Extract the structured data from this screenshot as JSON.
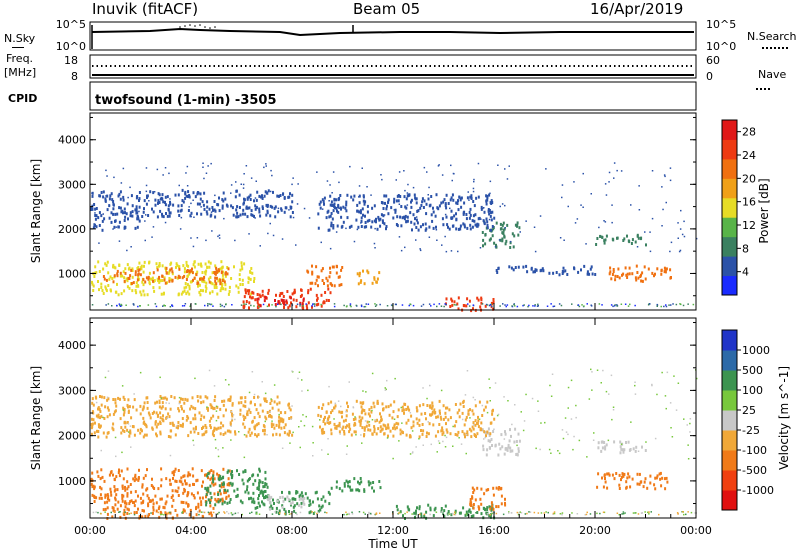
{
  "header": {
    "station": "Inuvik (fitACF)",
    "beam": "Beam 05",
    "date": "16/Apr/2019"
  },
  "left_labels": {
    "nsky": "N.Sky",
    "freq": "Freq.",
    "freq_unit": "[MHz]",
    "cpid": "CPID"
  },
  "right_labels": {
    "nsearch": "N.Search",
    "nave": "Nave"
  },
  "strip_ticks": {
    "noise_left": [
      "10^5",
      "10^0"
    ],
    "noise_right": [
      "10^5",
      "10^0"
    ],
    "freq_left": [
      "18",
      "8"
    ],
    "freq_right": [
      "60",
      "0"
    ]
  },
  "cpid_text": "twofsound (1-min) -3505",
  "time_ticks": [
    "00:00",
    "04:00",
    "08:00",
    "12:00",
    "16:00",
    "20:00",
    "00:00"
  ],
  "xlabel": "Time UT",
  "colors": {
    "power": [
      "#1a2bff",
      "#2b52a8",
      "#3a8060",
      "#58b448",
      "#e6dc26",
      "#f0a018",
      "#f07010",
      "#ee3a12",
      "#e01818"
    ],
    "velocity": [
      "#e01010",
      "#f04010",
      "#f07a18",
      "#f0a838",
      "#c8c8c8",
      "#78c83c",
      "#3c9450",
      "#2c6aa8",
      "#2034c8"
    ]
  },
  "chart_data": [
    {
      "type": "heatmap",
      "panel": "power",
      "ylabel": "Slant Range [km]",
      "yticks": [
        "1000",
        "2000",
        "3000",
        "4000"
      ],
      "ylim": [
        180,
        4600
      ],
      "xlim_hours": [
        0,
        24
      ],
      "colorbar_label": "Power [dB]",
      "colorbar_ticks": [
        "4",
        "8",
        "12",
        "16",
        "20",
        "24",
        "28"
      ],
      "clim": [
        0,
        30
      ],
      "regions": [
        {
          "t0": 0.0,
          "t1": 6.5,
          "r0": 550,
          "r1": 1300,
          "value": 16
        },
        {
          "t0": 0.5,
          "t1": 5.5,
          "r0": 800,
          "r1": 1150,
          "value": 22
        },
        {
          "t0": 6.0,
          "t1": 9.5,
          "r0": 250,
          "r1": 700,
          "value": 24
        },
        {
          "t0": 6.5,
          "t1": 8.5,
          "r0": 300,
          "r1": 500,
          "value": 27
        },
        {
          "t0": 0.0,
          "t1": 2.0,
          "r0": 2000,
          "r1": 2900,
          "value": 6
        },
        {
          "t0": 2.0,
          "t1": 8.0,
          "r0": 2300,
          "r1": 2900,
          "value": 5
        },
        {
          "t0": 8.5,
          "t1": 10.0,
          "r0": 750,
          "r1": 1200,
          "value": 20
        },
        {
          "t0": 10.5,
          "t1": 11.5,
          "r0": 800,
          "r1": 1100,
          "value": 18
        },
        {
          "t0": 14.0,
          "t1": 16.0,
          "r0": 200,
          "r1": 500,
          "value": 24
        },
        {
          "t0": 15.5,
          "t1": 17.0,
          "r0": 1600,
          "r1": 2200,
          "value": 8
        },
        {
          "t0": 20.5,
          "t1": 23.0,
          "r0": 850,
          "r1": 1200,
          "value": 22
        },
        {
          "t0": 20.0,
          "t1": 22.0,
          "r0": 1650,
          "r1": 1900,
          "value": 8
        },
        {
          "t0": 9.0,
          "t1": 16.0,
          "r0": 2000,
          "r1": 2800,
          "value": 4
        },
        {
          "t0": 16.0,
          "t1": 20.0,
          "r0": 1000,
          "r1": 1200,
          "value": 6
        }
      ]
    },
    {
      "type": "heatmap",
      "panel": "velocity",
      "ylabel": "Slant Range [km]",
      "yticks": [
        "1000",
        "2000",
        "3000",
        "4000"
      ],
      "ylim": [
        180,
        4600
      ],
      "xlim_hours": [
        0,
        24
      ],
      "colorbar_label": "Velocity [m s^-1]",
      "colorbar_ticks": [
        "-1000",
        "-500",
        "-100",
        "-25",
        "25",
        "100",
        "500",
        "1000"
      ],
      "regions": [
        {
          "t0": 0.0,
          "t1": 5.5,
          "r0": 550,
          "r1": 1300,
          "value": -300
        },
        {
          "t0": 0.5,
          "t1": 5.0,
          "r0": 200,
          "r1": 600,
          "value": -200
        },
        {
          "t0": 4.5,
          "t1": 7.0,
          "r0": 500,
          "r1": 1300,
          "value": 200
        },
        {
          "t0": 6.5,
          "t1": 9.5,
          "r0": 300,
          "r1": 800,
          "value": 150
        },
        {
          "t0": 7.0,
          "t1": 8.5,
          "r0": 400,
          "r1": 700,
          "value": 0
        },
        {
          "t0": 9.5,
          "t1": 11.5,
          "r0": 800,
          "r1": 1100,
          "value": 400
        },
        {
          "t0": 0.0,
          "t1": 8.0,
          "r0": 2000,
          "r1": 2900,
          "value": -60
        },
        {
          "t0": 12.0,
          "t1": 16.0,
          "r0": 200,
          "r1": 500,
          "value": 150
        },
        {
          "t0": 15.0,
          "t1": 16.5,
          "r0": 400,
          "r1": 900,
          "value": -300
        },
        {
          "t0": 15.5,
          "t1": 17.0,
          "r0": 1600,
          "r1": 2200,
          "value": 0
        },
        {
          "t0": 20.0,
          "t1": 23.0,
          "r0": 850,
          "r1": 1200,
          "value": -300
        },
        {
          "t0": 20.0,
          "t1": 22.0,
          "r0": 1650,
          "r1": 1900,
          "value": 0
        },
        {
          "t0": 9.0,
          "t1": 16.0,
          "r0": 2000,
          "r1": 2800,
          "value": -60
        }
      ]
    }
  ]
}
